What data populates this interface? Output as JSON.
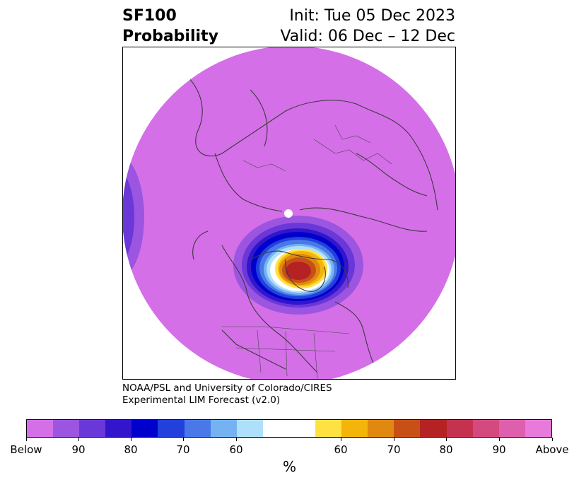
{
  "title": {
    "variable": "SF100",
    "subtitle": "Probability",
    "init": "Init: Tue 05 Dec 2023",
    "valid": "Valid: 06 Dec – 12 Dec"
  },
  "credit": {
    "line1": "NOAA/PSL and University of Colorado/CIRES",
    "line2": "Experimental LIM Forecast (v2.0)"
  },
  "colorbar": {
    "unit": "%",
    "colors": [
      "#d46fe8",
      "#9b55e0",
      "#6a38d8",
      "#3315cc",
      "#0000cd",
      "#2140dc",
      "#4a78e8",
      "#74b2f2",
      "#aee0fc",
      "#ffffff",
      "#ffe242",
      "#f3b50a",
      "#e08810",
      "#c85016",
      "#b42224",
      "#c43250",
      "#d44a7f",
      "#de5fae",
      "#e87adc"
    ],
    "tick_labels": [
      "Below",
      "90",
      "80",
      "70",
      "60",
      "60",
      "70",
      "80",
      "90",
      "Above"
    ]
  },
  "map": {
    "projection": "north polar stereographic",
    "anomaly_center": "northern Canada / Hudson Bay",
    "background_category": "Below"
  }
}
